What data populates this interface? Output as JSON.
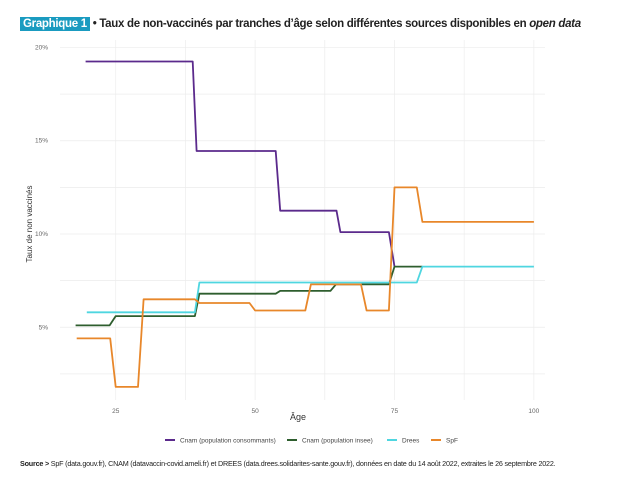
{
  "header": {
    "tag": "Graphique 1",
    "title_main": " • Taux de non-vaccinés par tranches d’âge selon différentes sources disponibles en ",
    "title_italic": "open data"
  },
  "footer": {
    "source_label": "Source >",
    "source_text": " SpF (data.gouv.fr), CNAM (datavaccin-covid.ameli.fr) et DREES (data.drees.solidarites-sante.gouv.fr), données en date du 14 août 2022, extraites le 26 septembre 2022."
  },
  "chart_data": {
    "type": "line",
    "xlabel": "Âge",
    "ylabel": "Taux de non vaccinés",
    "xlim": [
      15,
      102
    ],
    "ylim": [
      1.1,
      20.4
    ],
    "xticks": [
      25,
      50,
      75,
      100
    ],
    "xtick_labels": [
      "25",
      "50",
      "75",
      "100"
    ],
    "yticks": [
      5,
      10,
      15,
      20
    ],
    "ytick_labels": [
      "5%",
      "10%",
      "15%",
      "20%"
    ],
    "grid": true,
    "legend_position": "bottom",
    "series": [
      {
        "name": "Cnam (population consommants)",
        "color": "#5b2a8c",
        "x": [
          19.6,
          38.8,
          39.5,
          53.7,
          54.5,
          64.6,
          65.3,
          74,
          75
        ],
        "y": [
          19.25,
          19.25,
          14.45,
          14.45,
          11.25,
          11.25,
          10.1,
          10.1,
          8.25
        ]
      },
      {
        "name": "Cnam (population insee)",
        "color": "#2e5e2e",
        "x": [
          17.8,
          23.9,
          25,
          39.2,
          40,
          53.7,
          54.5,
          63.5,
          64.5,
          74,
          75,
          80
        ],
        "y": [
          5.1,
          5.1,
          5.6,
          5.6,
          6.8,
          6.8,
          6.95,
          6.95,
          7.3,
          7.3,
          8.25,
          8.25
        ]
      },
      {
        "name": "Drees",
        "color": "#4fd6e0",
        "x": [
          19.8,
          39.2,
          40,
          79,
          80,
          100
        ],
        "y": [
          5.8,
          5.8,
          7.4,
          7.4,
          8.25,
          8.25
        ]
      },
      {
        "name": "SpF",
        "color": "#e8872a",
        "x": [
          18,
          24,
          25,
          29,
          30,
          39.2,
          40,
          49,
          50,
          59,
          60,
          69,
          70,
          74,
          75,
          79,
          80,
          100
        ],
        "y": [
          4.4,
          4.4,
          1.8,
          1.8,
          6.5,
          6.5,
          6.3,
          6.3,
          5.9,
          5.9,
          7.3,
          7.3,
          5.9,
          5.9,
          12.5,
          12.5,
          10.65,
          10.65
        ]
      }
    ]
  }
}
